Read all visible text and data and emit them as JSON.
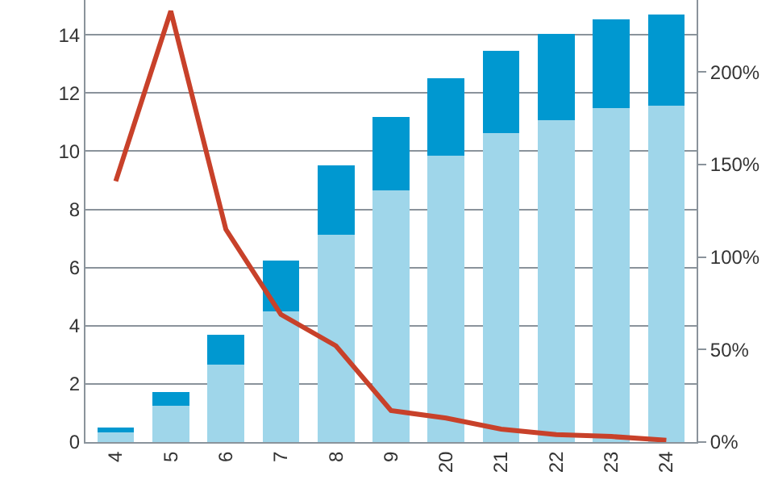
{
  "chart_data": {
    "type": "bar",
    "stacked": true,
    "categories": [
      "4",
      "5",
      "6",
      "7",
      "8",
      "9",
      "20",
      "21",
      "22",
      "23",
      "24"
    ],
    "series": [
      {
        "color": "#9fd6ea",
        "values": [
          0.32,
          1.26,
          2.66,
          4.5,
          7.14,
          8.65,
          9.84,
          10.61,
          11.08,
          11.48,
          11.57
        ]
      },
      {
        "color": "#0098d0",
        "values": [
          0.18,
          0.47,
          1.02,
          1.73,
          2.37,
          2.52,
          2.66,
          2.85,
          2.96,
          3.06,
          3.14
        ]
      },
      {
        "type": "line",
        "axis": "y2",
        "color": "#c8412a",
        "values": [
          141,
          233,
          115,
          69,
          52,
          17,
          13,
          7,
          4,
          3,
          1
        ]
      }
    ],
    "ylim": [
      0,
      15.2
    ],
    "yticks": [
      0,
      2,
      4,
      6,
      8,
      10,
      12,
      14
    ],
    "y2lim": [
      0,
      239
    ],
    "y2ticks": [
      {
        "value": 0,
        "label": "0%"
      },
      {
        "value": 50,
        "label": "50%"
      },
      {
        "value": 100,
        "label": "100%"
      },
      {
        "value": 150,
        "label": "150%"
      },
      {
        "value": 200,
        "label": "200%"
      }
    ],
    "grid": "y",
    "marker": "none",
    "line_style": "solid"
  }
}
